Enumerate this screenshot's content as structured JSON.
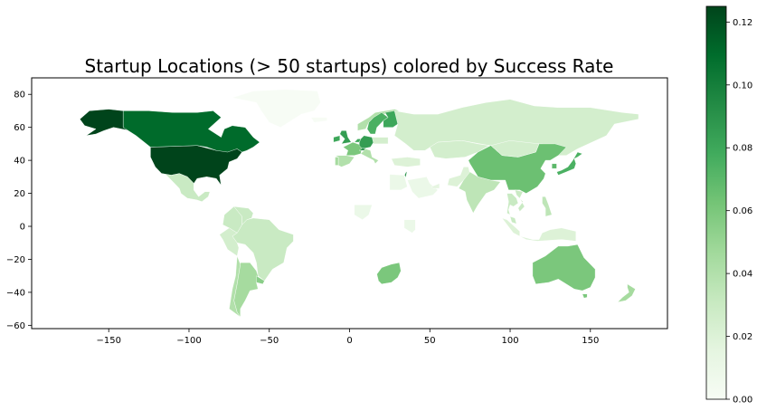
{
  "chart_data": {
    "type": "choropleth",
    "title": "Startup Locations (> 50 startups) colored by Success Rate",
    "xlabel": "",
    "ylabel": "",
    "x_ticks": [
      -150,
      -100,
      -50,
      0,
      50,
      100,
      150
    ],
    "y_ticks": [
      80,
      60,
      40,
      20,
      0,
      -20,
      -40,
      -60
    ],
    "xlim": [
      -198,
      198
    ],
    "ylim": [
      -62,
      90
    ],
    "colorbar": {
      "colormap": "Greens",
      "range": [
        0,
        0.125
      ],
      "ticks": [
        0.0,
        0.02,
        0.04,
        0.06,
        0.08,
        0.1,
        0.12
      ],
      "tick_labels": [
        "0.00",
        "0.02",
        "0.04",
        "0.06",
        "0.08",
        "0.10",
        "0.12"
      ]
    },
    "colors": {
      "low": "#f7fcf5",
      "high": "#00441b"
    },
    "regions": [
      {
        "name": "United States",
        "value": 0.125
      },
      {
        "name": "Alaska",
        "value": 0.125
      },
      {
        "name": "Canada",
        "value": 0.11
      },
      {
        "name": "Mexico",
        "value": 0.03
      },
      {
        "name": "Brazil",
        "value": 0.03
      },
      {
        "name": "Colombia",
        "value": 0.03
      },
      {
        "name": "Venezuela",
        "value": 0.03
      },
      {
        "name": "Peru",
        "value": 0.025
      },
      {
        "name": "Chile",
        "value": 0.04
      },
      {
        "name": "Argentina",
        "value": 0.045
      },
      {
        "name": "Uruguay",
        "value": 0.055
      },
      {
        "name": "Greenland",
        "value": 0.0
      },
      {
        "name": "Iceland",
        "value": 0.0
      },
      {
        "name": "Ireland",
        "value": 0.08
      },
      {
        "name": "United Kingdom",
        "value": 0.085
      },
      {
        "name": "France",
        "value": 0.06
      },
      {
        "name": "Spain",
        "value": 0.04
      },
      {
        "name": "Portugal",
        "value": 0.045
      },
      {
        "name": "Germany",
        "value": 0.085
      },
      {
        "name": "Netherlands",
        "value": 0.08
      },
      {
        "name": "Switzerland",
        "value": 0.09
      },
      {
        "name": "Italy",
        "value": 0.04
      },
      {
        "name": "Norway",
        "value": 0.04
      },
      {
        "name": "Sweden",
        "value": 0.075
      },
      {
        "name": "Finland",
        "value": 0.08
      },
      {
        "name": "Poland",
        "value": 0.025
      },
      {
        "name": "Russia",
        "value": 0.025
      },
      {
        "name": "Turkey",
        "value": 0.02
      },
      {
        "name": "Israel",
        "value": 0.09
      },
      {
        "name": "Egypt",
        "value": 0.01
      },
      {
        "name": "Nigeria",
        "value": 0.01
      },
      {
        "name": "Kenya",
        "value": 0.01
      },
      {
        "name": "South Africa",
        "value": 0.06
      },
      {
        "name": "Saudi Arabia",
        "value": 0.01
      },
      {
        "name": "UAE",
        "value": 0.015
      },
      {
        "name": "Pakistan",
        "value": 0.02
      },
      {
        "name": "India",
        "value": 0.035
      },
      {
        "name": "Kazakhstan",
        "value": 0.025
      },
      {
        "name": "China",
        "value": 0.065
      },
      {
        "name": "Mongolia",
        "value": 0.025
      },
      {
        "name": "Japan",
        "value": 0.075
      },
      {
        "name": "South Korea",
        "value": 0.07
      },
      {
        "name": "Vietnam",
        "value": 0.03
      },
      {
        "name": "Thailand",
        "value": 0.03
      },
      {
        "name": "Malaysia",
        "value": 0.03
      },
      {
        "name": "Indonesia",
        "value": 0.02
      },
      {
        "name": "Philippines",
        "value": 0.035
      },
      {
        "name": "Australia",
        "value": 0.06
      },
      {
        "name": "Tasmania",
        "value": 0.06
      },
      {
        "name": "New Zealand",
        "value": 0.045
      }
    ]
  }
}
